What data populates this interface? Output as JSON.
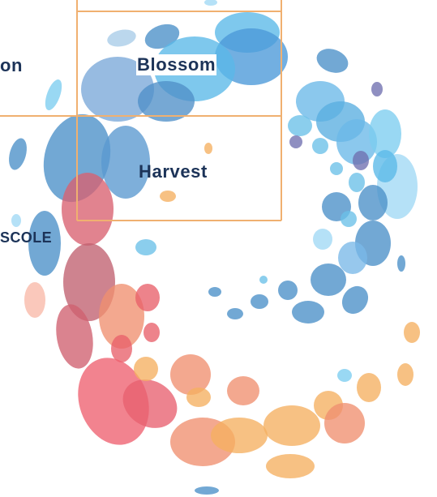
{
  "cards": [
    {
      "label": "on"
    },
    {
      "label": "Blossom"
    },
    {
      "label": "Harvest"
    },
    {
      "label": "SCOLE"
    }
  ]
}
